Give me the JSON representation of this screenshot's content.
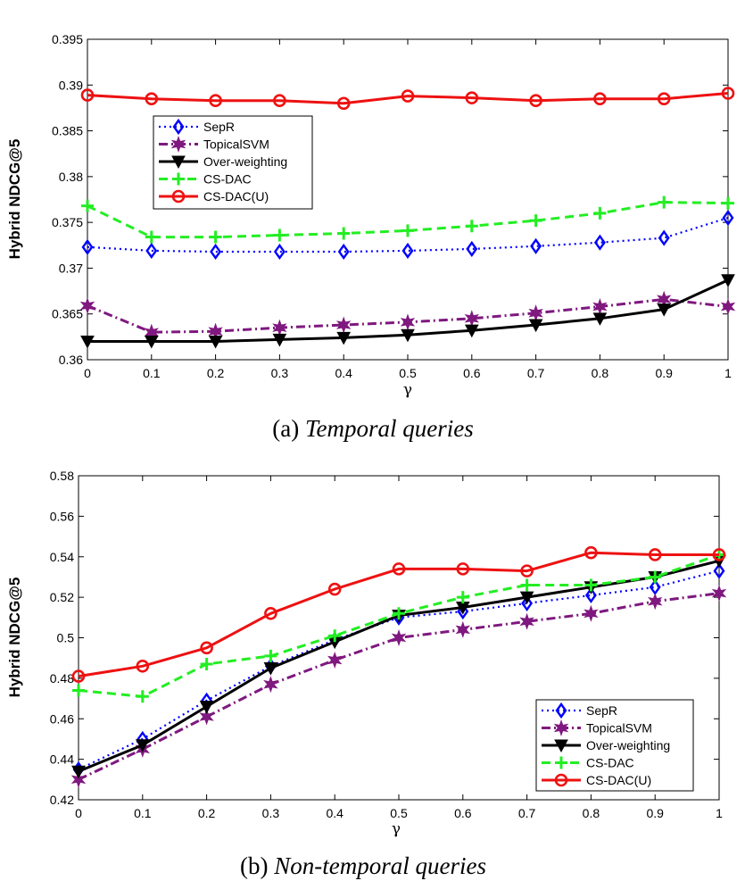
{
  "colors": {
    "SepR": "#0000ff",
    "TopicalSVM": "#7f187f",
    "Over-weighting": "#000000",
    "CS-DAC": "#22ee22",
    "CS-DAC(U)": "#ee1111"
  },
  "chart_data": [
    {
      "type": "line",
      "caption_prefix": "(a)",
      "caption_italic": "Temporal queries",
      "xlabel": "γ",
      "ylabel": "Hybrid NDCG@5",
      "x": [
        0,
        0.1,
        0.2,
        0.3,
        0.4,
        0.5,
        0.6,
        0.7,
        0.8,
        0.9,
        1
      ],
      "xticks": [
        "0",
        "0.1",
        "0.2",
        "0.3",
        "0.4",
        "0.5",
        "0.6",
        "0.7",
        "0.8",
        "0.9",
        "1"
      ],
      "yticks": [
        "0.36",
        "0.365",
        "0.37",
        "0.375",
        "0.38",
        "0.385",
        "0.39",
        "0.395"
      ],
      "ylim": [
        0.36,
        0.395
      ],
      "legend_position": "upper-left",
      "series": [
        {
          "name": "SepR",
          "values": [
            0.3723,
            0.3719,
            0.3718,
            0.3718,
            0.3718,
            0.3719,
            0.3721,
            0.3724,
            0.3728,
            0.3733,
            0.3755
          ]
        },
        {
          "name": "TopicalSVM",
          "values": [
            0.3659,
            0.363,
            0.3631,
            0.3635,
            0.3638,
            0.3641,
            0.3645,
            0.3651,
            0.3658,
            0.3666,
            0.3658
          ]
        },
        {
          "name": "Over-weighting",
          "values": [
            0.362,
            0.362,
            0.362,
            0.3622,
            0.3624,
            0.3627,
            0.3632,
            0.3638,
            0.3645,
            0.3655,
            0.3687
          ]
        },
        {
          "name": "CS-DAC",
          "values": [
            0.3768,
            0.3734,
            0.3734,
            0.3736,
            0.3738,
            0.3741,
            0.3746,
            0.3752,
            0.376,
            0.3772,
            0.3771
          ]
        },
        {
          "name": "CS-DAC(U)",
          "values": [
            0.3889,
            0.3885,
            0.3883,
            0.3883,
            0.388,
            0.3888,
            0.3886,
            0.3883,
            0.3885,
            0.3885,
            0.3891
          ]
        }
      ]
    },
    {
      "type": "line",
      "caption_prefix": "(b)",
      "caption_italic": "Non-temporal queries",
      "xlabel": "γ",
      "ylabel": "Hybrid NDCG@5",
      "x": [
        0,
        0.1,
        0.2,
        0.3,
        0.4,
        0.5,
        0.6,
        0.7,
        0.8,
        0.9,
        1
      ],
      "xticks": [
        "0",
        "0.1",
        "0.2",
        "0.3",
        "0.4",
        "0.5",
        "0.6",
        "0.7",
        "0.8",
        "0.9",
        "1"
      ],
      "yticks": [
        "0.42",
        "0.44",
        "0.46",
        "0.48",
        "0.5",
        "0.52",
        "0.54",
        "0.56",
        "0.58"
      ],
      "ylim": [
        0.42,
        0.58
      ],
      "legend_position": "lower-right",
      "series": [
        {
          "name": "SepR",
          "values": [
            0.435,
            0.45,
            0.469,
            0.486,
            0.499,
            0.51,
            0.513,
            0.517,
            0.521,
            0.525,
            0.533
          ]
        },
        {
          "name": "TopicalSVM",
          "values": [
            0.43,
            0.445,
            0.461,
            0.477,
            0.489,
            0.5,
            0.504,
            0.508,
            0.512,
            0.518,
            0.522
          ]
        },
        {
          "name": "Over-weighting",
          "values": [
            0.434,
            0.447,
            0.466,
            0.485,
            0.498,
            0.511,
            0.515,
            0.52,
            0.525,
            0.53,
            0.538
          ]
        },
        {
          "name": "CS-DAC",
          "values": [
            0.474,
            0.471,
            0.487,
            0.491,
            0.501,
            0.512,
            0.52,
            0.526,
            0.526,
            0.53,
            0.541
          ]
        },
        {
          "name": "CS-DAC(U)",
          "values": [
            0.481,
            0.486,
            0.495,
            0.512,
            0.524,
            0.534,
            0.534,
            0.533,
            0.542,
            0.541,
            0.541
          ]
        }
      ]
    }
  ]
}
